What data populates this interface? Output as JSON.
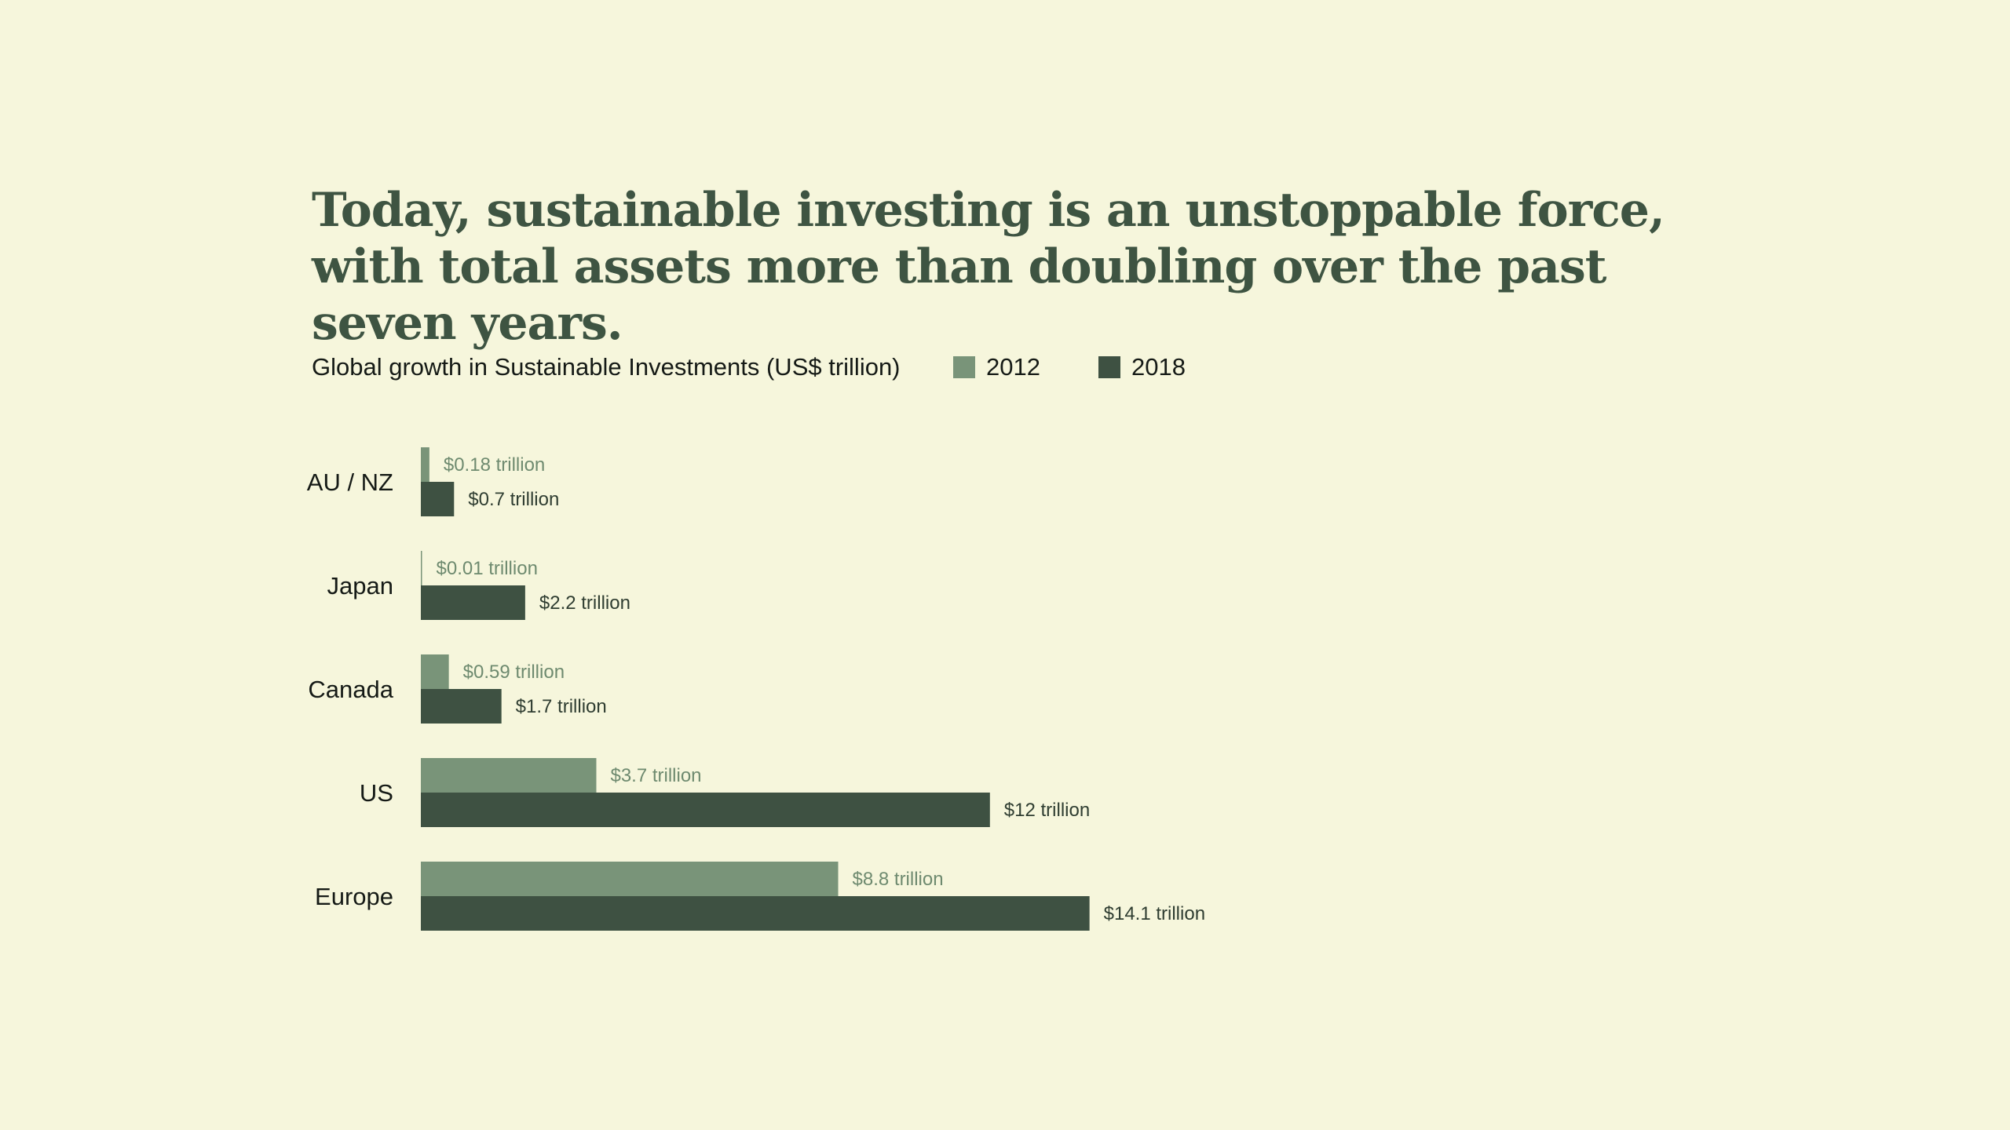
{
  "headline": "Today, sustainable investing is an unstoppable force, with total assets more than doubling over the past seven years.",
  "chart_data": {
    "type": "bar",
    "orientation": "horizontal",
    "title": "Global growth in Sustainable Investments (US$ trillion)",
    "categories": [
      "AU / NZ",
      "Japan",
      "Canada",
      "US",
      "Europe"
    ],
    "series": [
      {
        "name": "2012",
        "color": "#799479",
        "values": [
          0.18,
          0.01,
          0.59,
          3.7,
          8.8
        ],
        "labels": [
          "$0.18 trillion",
          "$0.01 trillion",
          "$0.59 trillion",
          "$3.7 trillion",
          "$8.8 trillion"
        ]
      },
      {
        "name": "2018",
        "color": "#3e5142",
        "values": [
          0.7,
          2.2,
          1.7,
          12,
          14.1
        ],
        "labels": [
          "$0.7 trillion",
          "$2.2 trillion",
          "$1.7 trillion",
          "$12 trillion",
          "$14.1 trillion"
        ]
      }
    ],
    "xlim": [
      0,
      14.1
    ],
    "xlabel": "",
    "ylabel": "",
    "grid": false,
    "legend_position": "top"
  }
}
